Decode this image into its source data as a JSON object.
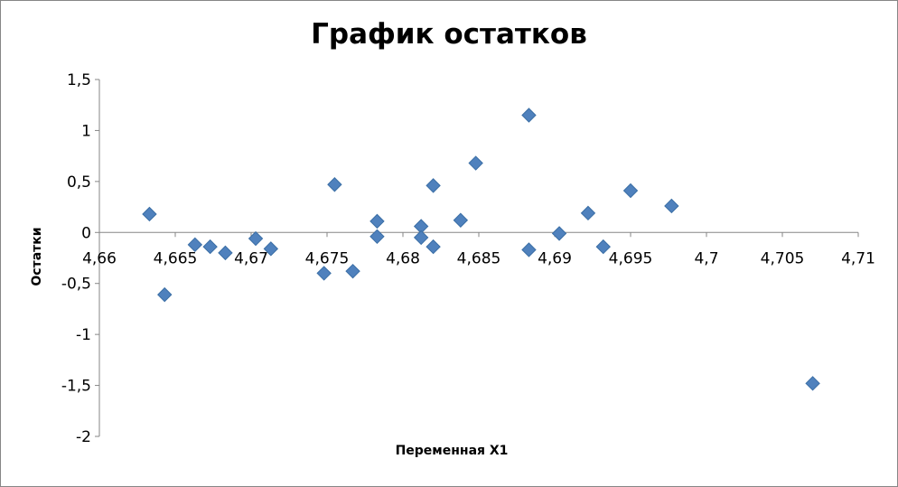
{
  "chart_data": {
    "type": "scatter",
    "title": "График остатков",
    "xlabel": "Переменная X1",
    "ylabel": "Остатки",
    "xlim": [
      4.66,
      4.71
    ],
    "ylim": [
      -2,
      1.5
    ],
    "x_ticks": [
      "4,66",
      "4,665",
      "4,67",
      "4,675",
      "4,68",
      "4,685",
      "4,69",
      "4,695",
      "4,7",
      "4,705",
      "4,71"
    ],
    "y_ticks": [
      "1,5",
      "1",
      "0,5",
      "0",
      "-0,5",
      "-1",
      "-1,5",
      "-2"
    ],
    "grid": false,
    "legend": "none",
    "marker": "diamond",
    "color": "#4f81bd",
    "series": [
      {
        "points": [
          [
            4.6633,
            0.18
          ],
          [
            4.6643,
            -0.61
          ],
          [
            4.6663,
            -0.12
          ],
          [
            4.6673,
            -0.14
          ],
          [
            4.6683,
            -0.2
          ],
          [
            4.6703,
            -0.06
          ],
          [
            4.6713,
            -0.16
          ],
          [
            4.6748,
            -0.4
          ],
          [
            4.6755,
            0.47
          ],
          [
            4.6767,
            -0.38
          ],
          [
            4.6783,
            0.11
          ],
          [
            4.6783,
            -0.04
          ],
          [
            4.6812,
            0.06
          ],
          [
            4.6812,
            -0.05
          ],
          [
            4.682,
            0.46
          ],
          [
            4.682,
            -0.14
          ],
          [
            4.6838,
            0.12
          ],
          [
            4.6848,
            0.68
          ],
          [
            4.6883,
            1.15
          ],
          [
            4.6883,
            -0.17
          ],
          [
            4.6903,
            -0.01
          ],
          [
            4.6922,
            0.19
          ],
          [
            4.6932,
            -0.14
          ],
          [
            4.695,
            0.41
          ],
          [
            4.6977,
            0.26
          ],
          [
            4.707,
            -1.48
          ]
        ]
      }
    ]
  }
}
